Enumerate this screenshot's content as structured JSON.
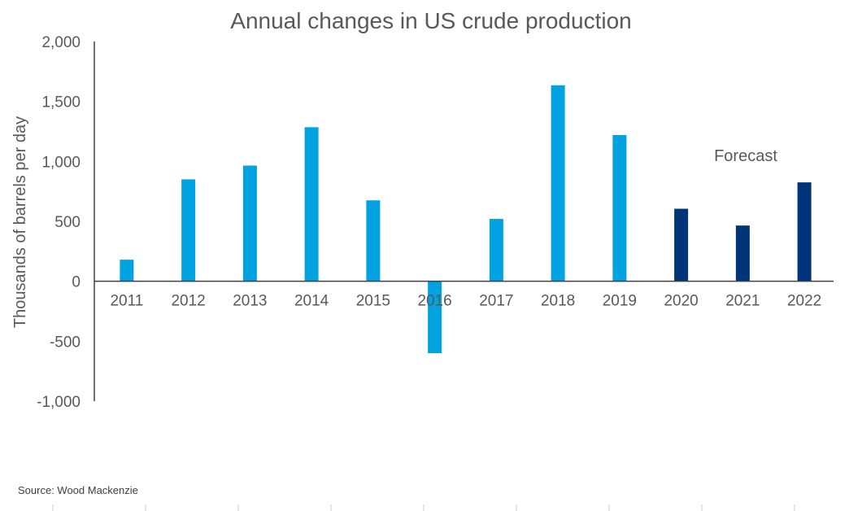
{
  "chart_data": {
    "type": "bar",
    "title": "Annual changes in US crude production",
    "xlabel": "",
    "ylabel": "Thousands of barrels per day",
    "ylim": [
      -1000,
      2000
    ],
    "yticks": [
      -1000,
      -500,
      0,
      500,
      1000,
      1500,
      2000
    ],
    "ytick_labels": [
      "-1,000",
      "-500",
      "0",
      "500",
      "1,000",
      "1,500",
      "2,000"
    ],
    "categories": [
      "2011",
      "2012",
      "2013",
      "2014",
      "2015",
      "2016",
      "2017",
      "2018",
      "2019",
      "2020",
      "2021",
      "2022"
    ],
    "values": [
      180,
      850,
      965,
      1285,
      675,
      -600,
      520,
      1635,
      1220,
      605,
      465,
      825
    ],
    "forecast_from_index": 9,
    "colors": {
      "actual": "#00A3E0",
      "forecast": "#003478",
      "axis": "#404040"
    },
    "grid": false,
    "annotation": "Forecast",
    "source": "Source: Wood Mackenzie"
  }
}
